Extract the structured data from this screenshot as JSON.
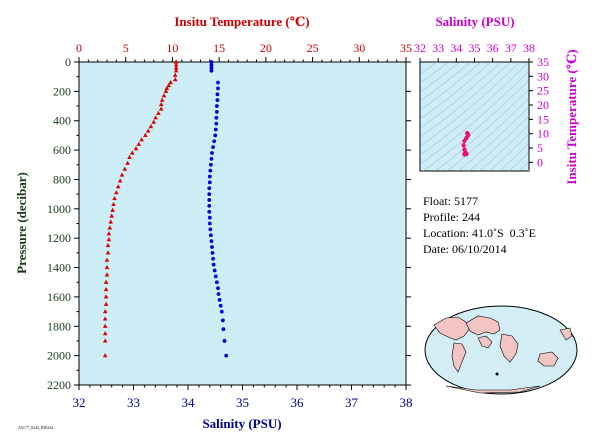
{
  "chart_data": [
    {
      "type": "scatter",
      "title": "",
      "ylabel": "Pressure (decibar)",
      "top_axis": {
        "label": "Insitu Temperature (℃)",
        "range": [
          0,
          35
        ],
        "ticks": [
          "0",
          "5",
          "10",
          "15",
          "20",
          "25",
          "30",
          "35"
        ],
        "color": "#d00000"
      },
      "bottom_axis": {
        "label": "Salinity (PSU)",
        "range": [
          32,
          38
        ],
        "ticks": [
          "32",
          "33",
          "34",
          "35",
          "36",
          "37",
          "38"
        ],
        "color": "#00008b"
      },
      "left_axis": {
        "range": [
          0,
          2200
        ],
        "inverted": true,
        "ticks": [
          "0",
          "200",
          "400",
          "600",
          "800",
          "1000",
          "1200",
          "1400",
          "1600",
          "1800",
          "2000",
          "2200"
        ]
      },
      "background": "#cdeef7",
      "series": [
        {
          "color": "#e00000",
          "marker": "triangle",
          "x_axis": "temperature",
          "x": [
            10.4,
            10.4,
            10.4,
            10.4,
            10.3,
            10.3,
            9.8,
            9.6,
            9.4,
            9.3,
            9.1,
            8.9,
            8.8,
            8.8,
            8.5,
            8.2,
            8.0,
            7.7,
            7.4,
            7.1,
            6.7,
            6.4,
            6.1,
            5.7,
            5.4,
            5.2,
            4.9,
            4.6,
            4.4,
            4.2,
            4.0,
            3.8,
            3.7,
            3.6,
            3.5,
            3.4,
            3.3,
            3.2,
            3.2,
            3.1,
            3.1,
            3.0,
            3.0,
            3.0,
            2.9,
            2.9,
            2.9,
            2.9,
            2.8,
            2.8,
            2.8,
            2.8,
            2.8,
            2.8
          ],
          "y": [
            0,
            20,
            40,
            60,
            90,
            120,
            140,
            160,
            180,
            200,
            230,
            260,
            290,
            320,
            350,
            380,
            410,
            440,
            470,
            500,
            530,
            560,
            590,
            620,
            650,
            690,
            730,
            770,
            810,
            850,
            890,
            930,
            970,
            1010,
            1050,
            1090,
            1130,
            1170,
            1210,
            1250,
            1300,
            1350,
            1400,
            1450,
            1500,
            1550,
            1600,
            1650,
            1700,
            1750,
            1800,
            1850,
            1900,
            2000
          ]
        },
        {
          "color": "#0000dd",
          "marker": "circle",
          "x_axis": "salinity",
          "x": [
            34.43,
            34.43,
            34.43,
            34.43,
            34.55,
            34.55,
            34.54,
            34.54,
            34.53,
            34.53,
            34.52,
            34.52,
            34.51,
            34.5,
            34.48,
            34.46,
            34.44,
            34.43,
            34.42,
            34.41,
            34.4,
            34.4,
            34.39,
            34.39,
            34.39,
            34.39,
            34.39,
            34.4,
            34.4,
            34.41,
            34.42,
            34.43,
            34.44,
            34.45,
            34.46,
            34.47,
            34.49,
            34.51,
            34.53,
            34.55,
            34.56,
            34.58,
            34.6,
            34.62,
            34.64,
            34.65,
            34.67,
            34.7
          ],
          "y": [
            0,
            20,
            40,
            60,
            140,
            180,
            220,
            260,
            300,
            340,
            380,
            420,
            460,
            500,
            540,
            580,
            620,
            660,
            700,
            740,
            780,
            820,
            860,
            900,
            940,
            980,
            1020,
            1060,
            1100,
            1140,
            1180,
            1220,
            1260,
            1300,
            1340,
            1380,
            1420,
            1460,
            1500,
            1540,
            1580,
            1620,
            1660,
            1700,
            1760,
            1820,
            1900,
            2000
          ]
        }
      ]
    },
    {
      "type": "scatter",
      "title": "",
      "top_axis": {
        "label": "Salinity (PSU)",
        "range": [
          32,
          38
        ],
        "ticks": [
          "32",
          "33",
          "34",
          "35",
          "36",
          "37",
          "38"
        ],
        "color": "#cc00cc"
      },
      "right_axis": {
        "label": "Insitu Temperature (℃)",
        "range": [
          -3,
          35
        ],
        "ticks": [
          "0",
          "5",
          "10",
          "15",
          "20",
          "25",
          "30",
          "35"
        ],
        "color": "#cc00cc"
      },
      "background": "#cdeef7",
      "series": [
        {
          "color": "#ee1177",
          "x": [
            34.6,
            34.65,
            34.55,
            34.45,
            34.4,
            34.45,
            34.5,
            34.55,
            34.55,
            34.45,
            34.45
          ],
          "y": [
            10.2,
            9.5,
            8.5,
            7.5,
            6,
            4.5,
            3.5,
            3,
            2.9,
            2.8,
            2.8
          ]
        }
      ]
    }
  ],
  "info": {
    "float": "Float: 5177",
    "profile": "Profile: 244",
    "location": "Location: 41.0˚S  0.3˚E",
    "date": "Date: 06/10/2014"
  },
  "footnote": "A5177_0244_ID0244"
}
